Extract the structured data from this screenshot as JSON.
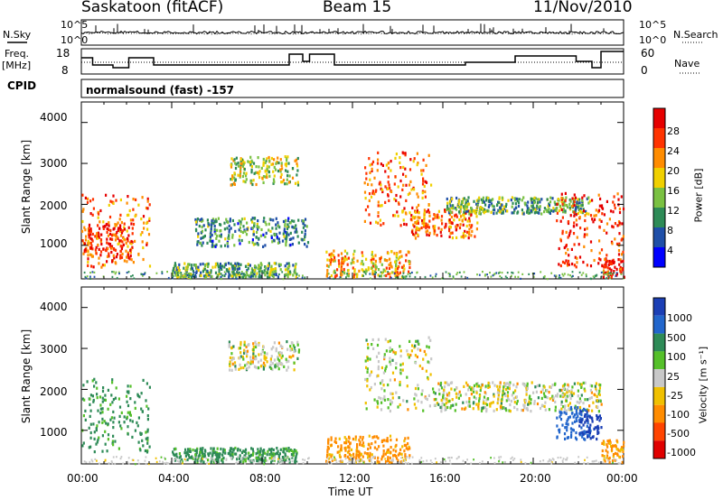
{
  "header": {
    "station": "Saskatoon (fitACF)",
    "beam": "Beam 15",
    "date": "11/Nov/2010"
  },
  "noise_panel": {
    "left_label": "N.Sky",
    "right_label": "N.Search",
    "left_ticks": [
      "10^5",
      "10^0"
    ],
    "right_ticks": [
      "10^5",
      "10^0"
    ]
  },
  "freq_panel": {
    "left_label_line1": "Freq.",
    "left_label_line2": "[MHz]",
    "left_ticks": [
      "18",
      "8"
    ],
    "right_label": "Nave",
    "right_ticks": [
      "60",
      "0"
    ]
  },
  "cpid_panel": {
    "label": "CPID",
    "mode_text": "normalsound (fast) -157"
  },
  "power_panel": {
    "ylabel": "Slant Range [km]",
    "yticks": [
      "4000",
      "3000",
      "2000",
      "1000"
    ],
    "colorbar_title": "Power [dB]",
    "colorbar_ticks": [
      "28",
      "24",
      "20",
      "16",
      "12",
      "8",
      "4"
    ],
    "colors": [
      "#0000ff",
      "#1f4fa8",
      "#2e8b57",
      "#7ac142",
      "#f0d000",
      "#ff8c00",
      "#ff3300",
      "#e60000"
    ]
  },
  "velocity_panel": {
    "ylabel": "Slant Range [km]",
    "yticks": [
      "4000",
      "3000",
      "2000",
      "1000"
    ],
    "colorbar_title": "Velocity [m s⁻¹]",
    "colorbar_ticks": [
      "1000",
      "500",
      "100",
      "25",
      "-25",
      "-100",
      "-500",
      "-1000"
    ],
    "colors": [
      "#1b3fb5",
      "#2266cc",
      "#2e8b57",
      "#55c02a",
      "#c8c8c8",
      "#f0c000",
      "#ff8c00",
      "#ff4400",
      "#e00000"
    ]
  },
  "x_axis": {
    "label": "Time UT",
    "ticks": [
      "00:00",
      "04:00",
      "08:00",
      "12:00",
      "16:00",
      "20:00",
      "00:00"
    ]
  },
  "chart_data": [
    {
      "type": "heatmap",
      "quantity": "Power",
      "unit": "dB",
      "xlabel": "Time UT",
      "ylabel": "Slant Range [km]",
      "xlim": [
        0,
        24
      ],
      "ylim": [
        180,
        4500
      ],
      "clim": [
        0,
        32
      ],
      "features": [
        {
          "t": [
            0.0,
            3.0
          ],
          "range": [
            500,
            2300
          ],
          "value": 24
        },
        {
          "t": [
            0.1,
            2.2
          ],
          "range": [
            700,
            1600
          ],
          "value": 28
        },
        {
          "t": [
            4.0,
            9.5
          ],
          "range": [
            250,
            600
          ],
          "value": 12
        },
        {
          "t": [
            5.0,
            10.0
          ],
          "range": [
            1000,
            1700
          ],
          "value": 10
        },
        {
          "t": [
            6.5,
            9.6
          ],
          "range": [
            2500,
            3200
          ],
          "value": 16
        },
        {
          "t": [
            10.8,
            14.5
          ],
          "range": [
            250,
            900
          ],
          "value": 20
        },
        {
          "t": [
            12.5,
            15.5
          ],
          "range": [
            1500,
            3300
          ],
          "value": 24
        },
        {
          "t": [
            14.5,
            17.5
          ],
          "range": [
            1200,
            1900
          ],
          "value": 24
        },
        {
          "t": [
            16.0,
            22.5
          ],
          "range": [
            1800,
            2200
          ],
          "value": 12
        },
        {
          "t": [
            21.0,
            24.0
          ],
          "range": [
            500,
            2300
          ],
          "value": 28
        },
        {
          "t": [
            23.0,
            24.0
          ],
          "range": [
            250,
            700
          ],
          "value": 28
        }
      ]
    },
    {
      "type": "heatmap",
      "quantity": "Velocity",
      "unit": "m s-1",
      "xlabel": "Time UT",
      "ylabel": "Slant Range [km]",
      "xlim": [
        0,
        24
      ],
      "ylim": [
        180,
        4500
      ],
      "clim": [
        -1000,
        1000
      ],
      "features": [
        {
          "t": [
            0.0,
            3.0
          ],
          "range": [
            500,
            2300
          ],
          "value": 100
        },
        {
          "t": [
            4.0,
            9.5
          ],
          "range": [
            250,
            600
          ],
          "value": 100
        },
        {
          "t": [
            6.5,
            9.6
          ],
          "range": [
            2500,
            3200
          ],
          "value": 0
        },
        {
          "t": [
            10.8,
            14.5
          ],
          "range": [
            250,
            900
          ],
          "value": -100
        },
        {
          "t": [
            12.5,
            15.5
          ],
          "range": [
            1500,
            3300
          ],
          "value": 0
        },
        {
          "t": [
            15.5,
            23.0
          ],
          "range": [
            1500,
            2200
          ],
          "value": 0
        },
        {
          "t": [
            21.0,
            22.5
          ],
          "range": [
            800,
            1600
          ],
          "value": 500
        },
        {
          "t": [
            22.0,
            23.0
          ],
          "range": [
            800,
            1500
          ],
          "value": 1000
        },
        {
          "t": [
            23.0,
            24.0
          ],
          "range": [
            250,
            800
          ],
          "value": -100
        }
      ]
    }
  ]
}
